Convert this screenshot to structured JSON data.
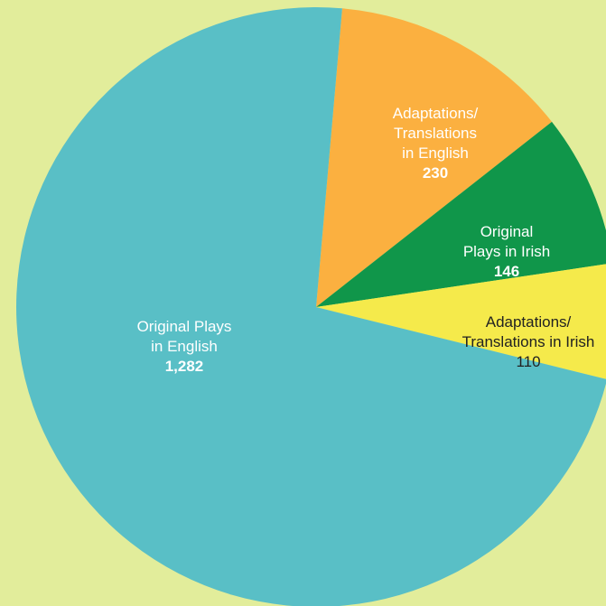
{
  "background": "#e2ed9b",
  "chart_data": {
    "type": "pie",
    "title": "",
    "start_angle_deg": 5,
    "direction": "clockwise",
    "slices": [
      {
        "label_lines": [
          "Adaptations/",
          "Translations",
          "in English"
        ],
        "value": 230,
        "value_label": "230",
        "value_bold": true,
        "color": "#fbb040",
        "text_color": "#ffffff"
      },
      {
        "label_lines": [
          "Original",
          "Plays in Irish"
        ],
        "value": 146,
        "value_label": "146",
        "value_bold": true,
        "color": "#10964a",
        "text_color": "#ffffff"
      },
      {
        "label_lines": [
          "Adaptations/",
          "Translations in Irish"
        ],
        "value": 110,
        "value_label": "110",
        "value_bold": false,
        "color": "#f5ea4b",
        "text_color": "#222222"
      },
      {
        "label_lines": [
          "Original Plays",
          "in English"
        ],
        "value": 1282,
        "value_label": "1,282",
        "value_bold": true,
        "color": "#59bfc6",
        "text_color": "#ffffff"
      }
    ]
  }
}
